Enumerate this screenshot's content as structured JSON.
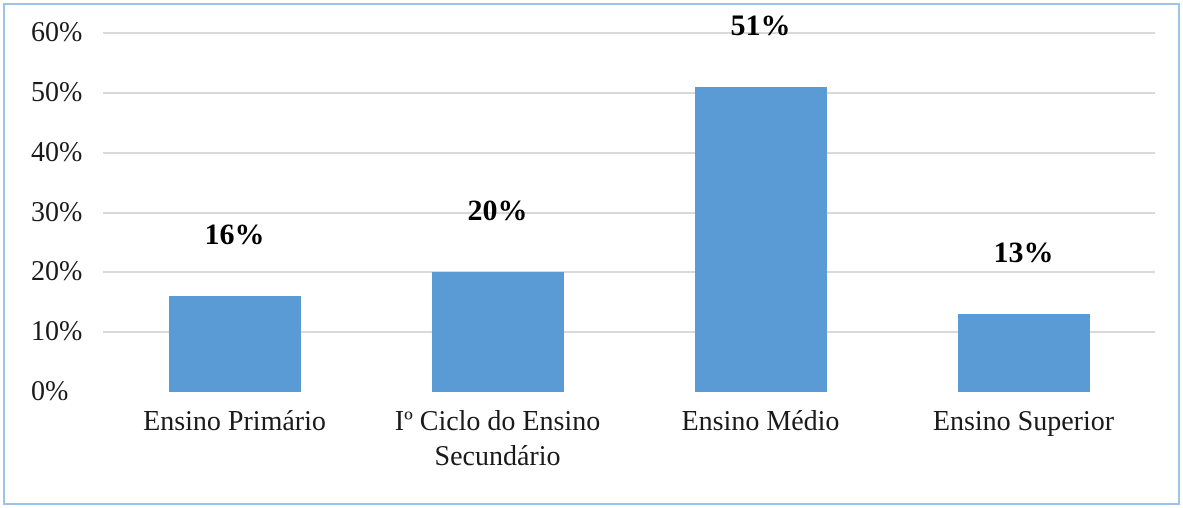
{
  "figure": {
    "background_color": "#FFFFFF",
    "border_color": "#9DC3E6"
  },
  "chart_data": {
    "type": "bar",
    "title": "",
    "xlabel": "",
    "ylabel": "",
    "categories": [
      "Ensino Primário",
      "Iº Ciclo do Ensino Secundário",
      "Ensino Médio",
      "Ensino Superior"
    ],
    "values": [
      16,
      20,
      51,
      13
    ],
    "data_labels": [
      "16%",
      "20%",
      "51%",
      "13%"
    ],
    "value_unit": "%",
    "ylim": [
      0,
      60
    ],
    "ytick_values": [
      0,
      10,
      20,
      30,
      40,
      50,
      60
    ],
    "ytick_labels": [
      "0%",
      "10%",
      "20%",
      "30%",
      "40%",
      "50%",
      "60%"
    ],
    "grid": "horizontal",
    "legend": "none",
    "bar_color": "#5B9BD5",
    "gridline_color": "#D9D9D9",
    "label_text_color": "#1a1a1a",
    "data_label_color": "#000000"
  }
}
